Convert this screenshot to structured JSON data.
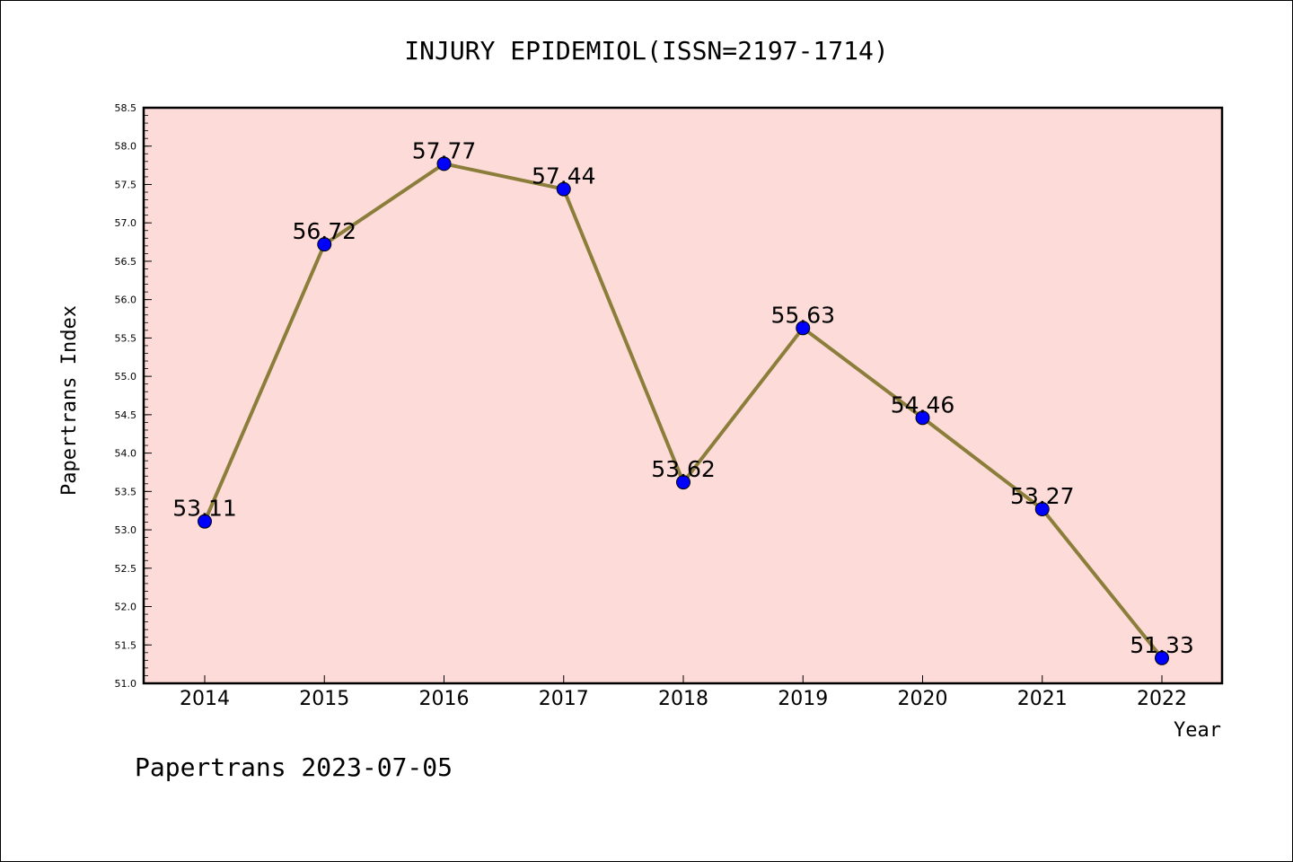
{
  "chart_data": {
    "type": "line",
    "title": "INJURY EPIDEMIOL(ISSN=2197-1714)",
    "xlabel": "Year",
    "ylabel": "Papertrans Index",
    "x": [
      "2014",
      "2015",
      "2016",
      "2017",
      "2018",
      "2019",
      "2020",
      "2021",
      "2022"
    ],
    "values": [
      53.11,
      56.72,
      57.77,
      57.44,
      53.62,
      55.63,
      54.46,
      53.27,
      51.33
    ],
    "data_labels": [
      "53.11",
      "56.72",
      "57.77",
      "57.44",
      "53.62",
      "55.63",
      "54.46",
      "53.27",
      "51.33"
    ],
    "ylim": [
      51.0,
      58.5
    ],
    "yticks": [
      "51.0",
      "51.5",
      "52.0",
      "52.5",
      "53.0",
      "53.5",
      "54.0",
      "54.5",
      "55.0",
      "55.5",
      "56.0",
      "56.5",
      "57.0",
      "57.5",
      "58.0",
      "58.5"
    ],
    "grid": false,
    "colors": {
      "plot_background": "#fddbd8",
      "line": "#8b7d3a",
      "marker": "#0000ff",
      "axes": "#000000"
    }
  },
  "footer": "Papertrans 2023-07-05"
}
